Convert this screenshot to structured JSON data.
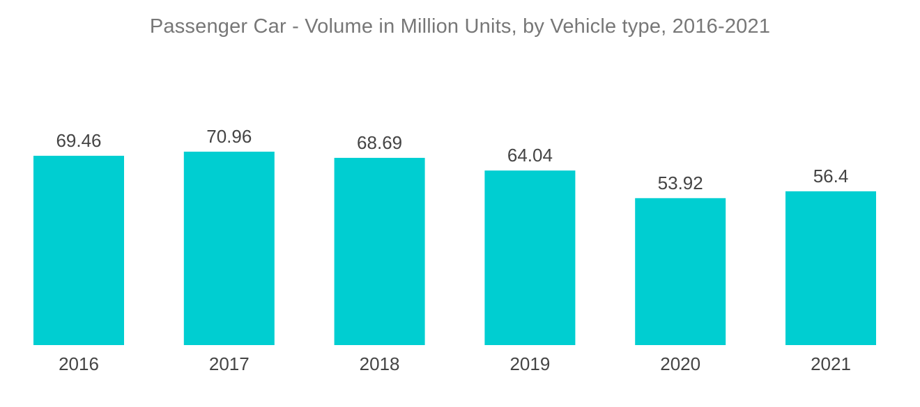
{
  "chart_data": {
    "type": "bar",
    "title": "Passenger Car - Volume in Million Units, by Vehicle type, 2016-2021",
    "categories": [
      "2016",
      "2017",
      "2018",
      "2019",
      "2020",
      "2021"
    ],
    "series": [
      {
        "name": "Passenger Car Volume (Million Units)",
        "values": [
          69.46,
          70.96,
          68.69,
          64.04,
          53.92,
          56.4
        ]
      }
    ],
    "data_labels": [
      "69.46",
      "70.96",
      "68.69",
      "64.04",
      "53.92",
      "56.4"
    ],
    "xlabel": "",
    "ylabel": "",
    "ylim": [
      0,
      70.96
    ],
    "grid": false,
    "legend": "none",
    "bar_color": "#00CED1"
  }
}
